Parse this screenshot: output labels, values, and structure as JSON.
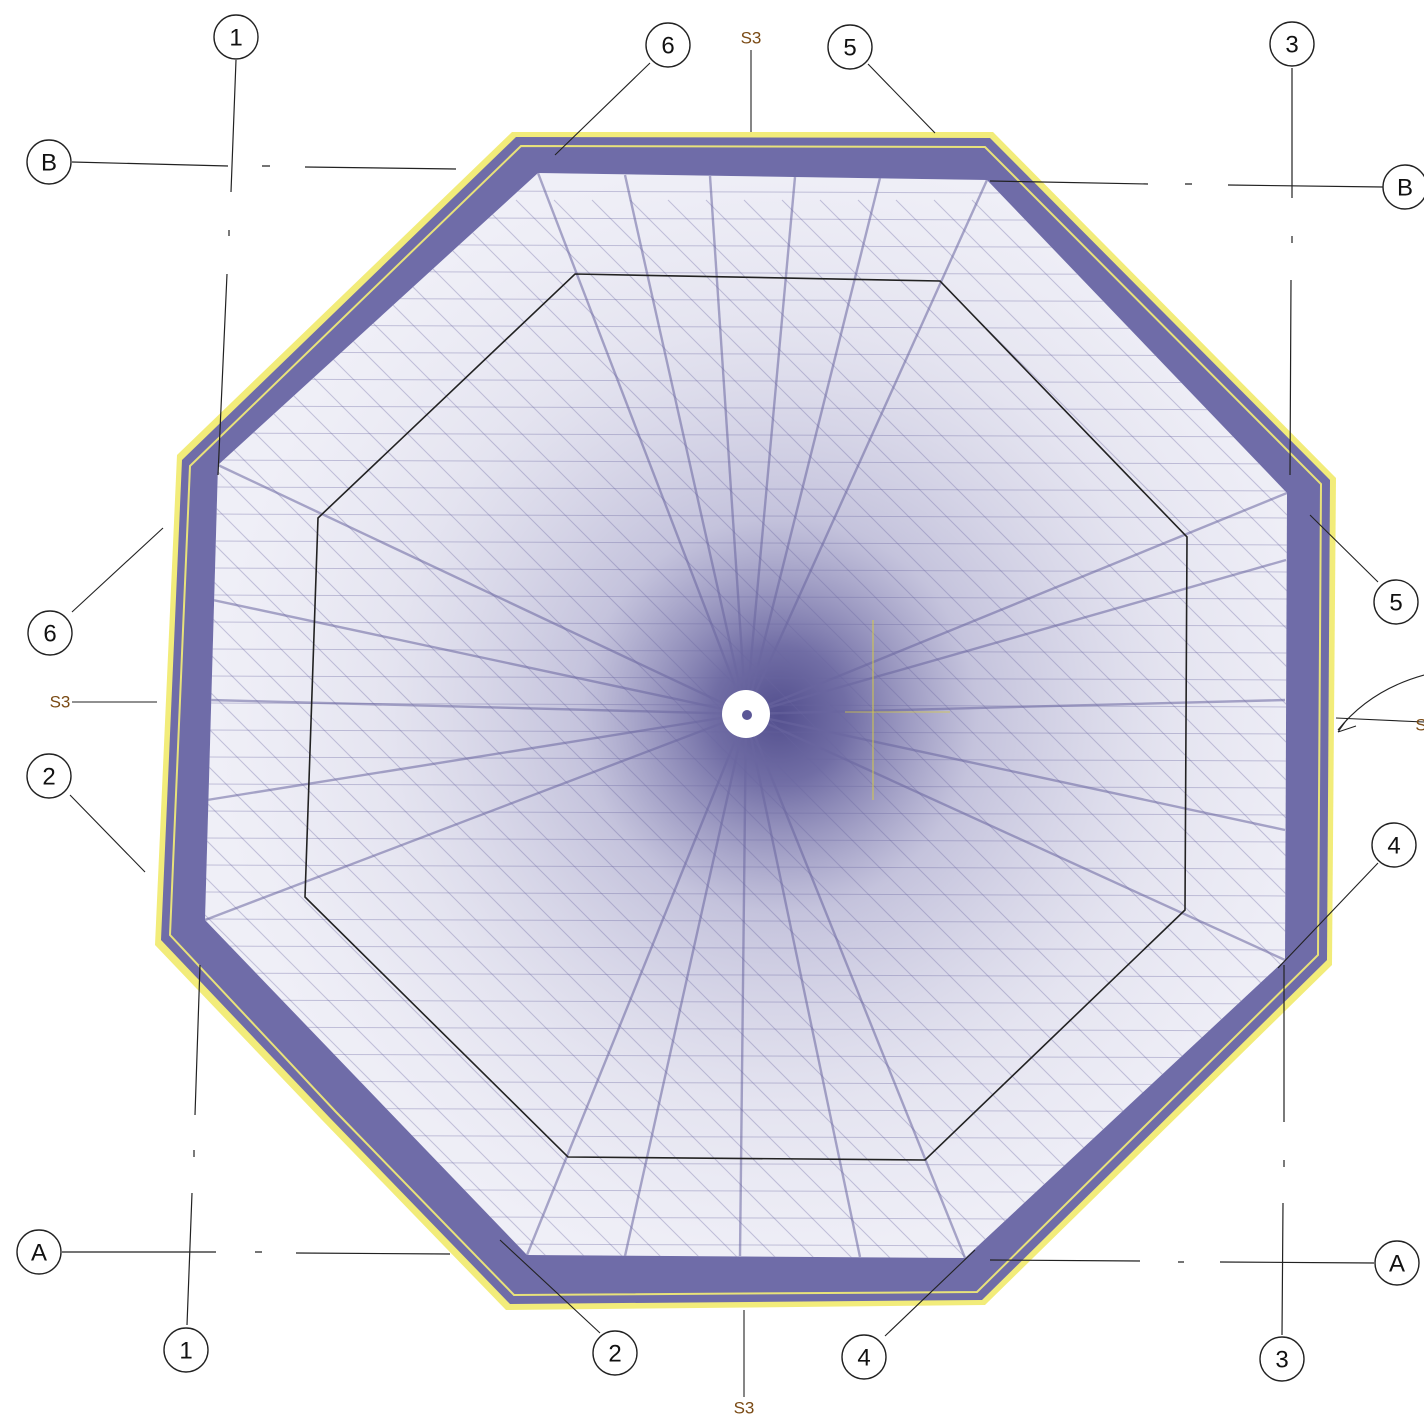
{
  "colors": {
    "point_cloud": "#6a66a0",
    "wall": "#6f6ca8",
    "wall_edge": "#f2ec7a",
    "section_mark": "#7a4a14",
    "line": "#222222"
  },
  "grid_bubbles": {
    "col_1_top": "1",
    "col_1_bottom": "1",
    "col_2_left": "2",
    "col_2_bottom": "2",
    "col_3_top": "3",
    "col_3_bottom": "3",
    "col_4_right": "4",
    "col_4_bottom": "4",
    "col_5_top": "5",
    "col_5_right": "5",
    "col_6_top": "6",
    "col_6_left": "6",
    "row_a_left": "A",
    "row_a_right": "A",
    "row_b_left": "B",
    "row_b_right": "B"
  },
  "section_marks": {
    "top": "S3",
    "bottom": "S3",
    "left": "S3",
    "right": "S"
  }
}
